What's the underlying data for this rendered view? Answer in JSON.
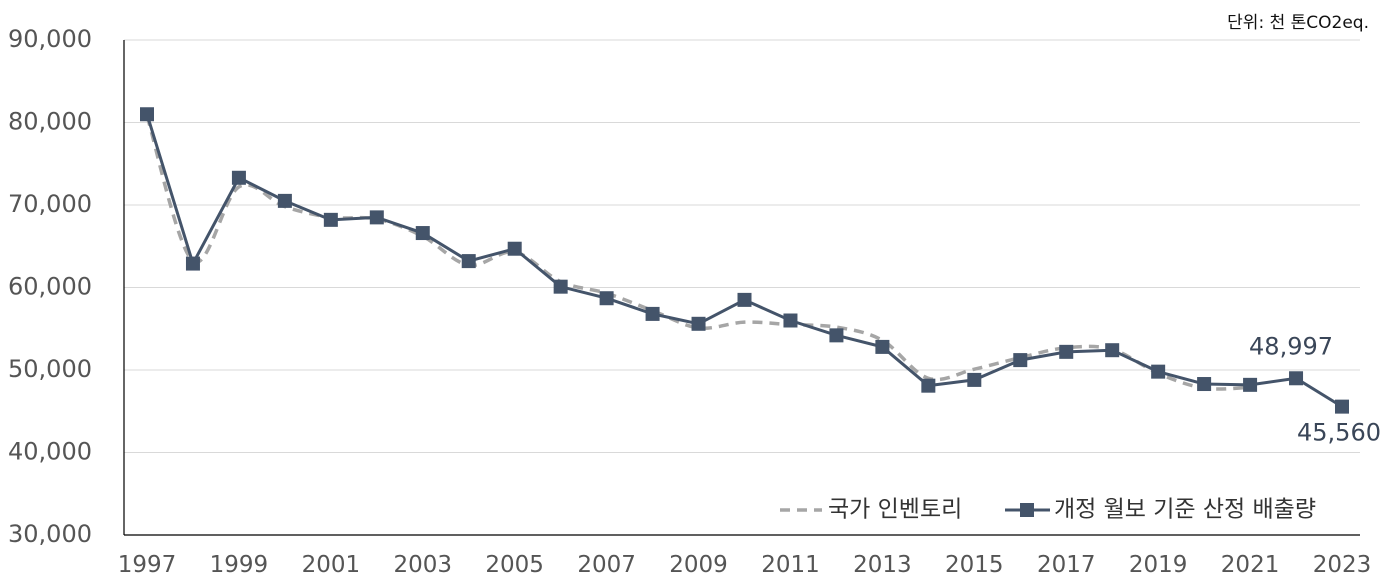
{
  "chart_data": {
    "type": "line",
    "unit_label": "단위: 천 톤CO2eq.",
    "x": [
      1997,
      1998,
      1999,
      2000,
      2001,
      2002,
      2003,
      2004,
      2005,
      2006,
      2007,
      2008,
      2009,
      2010,
      2011,
      2012,
      2013,
      2014,
      2015,
      2016,
      2017,
      2018,
      2019,
      2020,
      2021,
      2022,
      2023
    ],
    "x_tick_labels": [
      "1997",
      "1999",
      "2001",
      "2003",
      "2005",
      "2007",
      "2009",
      "2011",
      "2013",
      "2015",
      "2017",
      "2019",
      "2021",
      "2023"
    ],
    "y_tick_labels": [
      "30,000",
      "40,000",
      "50,000",
      "60,000",
      "70,000",
      "80,000",
      "90,000"
    ],
    "ylim": [
      30000,
      90000
    ],
    "y_ticks": [
      30000,
      40000,
      50000,
      60000,
      70000,
      80000,
      90000
    ],
    "grid": true,
    "legend_position": "bottom-right",
    "series": [
      {
        "name": "국가 인벤토리",
        "style": "dashed",
        "color": "#a6a6a6",
        "values": [
          80800,
          63200,
          72200,
          69800,
          68500,
          68300,
          66200,
          62700,
          64300,
          60700,
          59300,
          57200,
          55100,
          55800,
          55500,
          55200,
          53600,
          49000,
          50100,
          51500,
          52700,
          52500,
          49600,
          47800,
          47900,
          null,
          null
        ]
      },
      {
        "name": "개정 월보 기준 산정 배출량",
        "style": "solid",
        "marker": "square",
        "color": "#44546a",
        "values": [
          81000,
          62900,
          73300,
          70500,
          68200,
          68500,
          66600,
          63200,
          64700,
          60100,
          58700,
          56800,
          55600,
          58500,
          56000,
          54200,
          52800,
          48100,
          48800,
          51200,
          52200,
          52400,
          49800,
          48300,
          48200,
          48997,
          45560
        ]
      }
    ],
    "annotations": [
      {
        "year": 2022,
        "text": "48,997"
      },
      {
        "year": 2023,
        "text": "45,560"
      }
    ]
  }
}
